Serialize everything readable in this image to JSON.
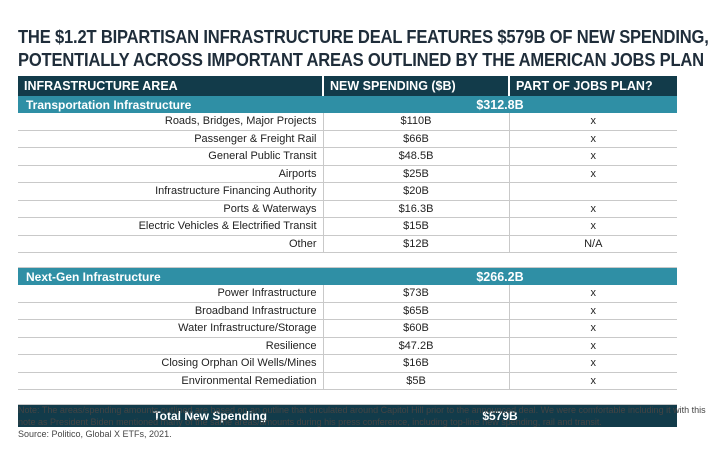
{
  "title": {
    "line1": "THE $1.2T BIPARTISAN INFRASTRUCTURE DEAL FEATURES $579B OF NEW SPENDING,",
    "line2": "POTENTIALLY ACROSS IMPORTANT AREAS OUTLINED BY THE AMERICAN JOBS PLAN"
  },
  "headers": {
    "area": "INFRASTRUCTURE AREA",
    "spending": "NEW SPENDING ($B)",
    "jobs": "PART OF JOBS PLAN?"
  },
  "transport": {
    "name": "Transportation Infrastructure",
    "subtotal": "$312.8B",
    "rows": [
      {
        "area": "Roads, Bridges, Major Projects",
        "amount": "$110B",
        "jobs": "x"
      },
      {
        "area": "Passenger & Freight Rail",
        "amount": "$66B",
        "jobs": "x"
      },
      {
        "area": "General Public Transit",
        "amount": "$48.5B",
        "jobs": "x"
      },
      {
        "area": "Airports",
        "amount": "$25B",
        "jobs": "x"
      },
      {
        "area": "Infrastructure Financing Authority",
        "amount": "$20B",
        "jobs": ""
      },
      {
        "area": "Ports & Waterways",
        "amount": "$16.3B",
        "jobs": "x"
      },
      {
        "area": "Electric Vehicles & Electrified Transit",
        "amount": "$15B",
        "jobs": "x"
      },
      {
        "area": "Other",
        "amount": "$12B",
        "jobs": "N/A"
      }
    ]
  },
  "nextgen": {
    "name": "Next-Gen Infrastructure",
    "subtotal": "$266.2B",
    "rows": [
      {
        "area": "Power Infrastructure",
        "amount": "$73B",
        "jobs": "x"
      },
      {
        "area": "Broadband Infrastructure",
        "amount": "$65B",
        "jobs": "x"
      },
      {
        "area": "Water Infrastructure/Storage",
        "amount": "$60B",
        "jobs": "x"
      },
      {
        "area": "Resilience",
        "amount": "$47.2B",
        "jobs": "x"
      },
      {
        "area": "Closing Orphan Oil Wells/Mines",
        "amount": "$16B",
        "jobs": "x"
      },
      {
        "area": "Environmental Remediation",
        "amount": "$5B",
        "jobs": "x"
      }
    ]
  },
  "total": {
    "label": "Total New Spending",
    "amount": "$579B"
  },
  "note": {
    "text": "Note: The areas/spending amounts outlined are based on an outline that circulated around Capitol Hill prior to the announced deal. We were comfortable including it with this note as President Biden mentioned many of the same areas/amounts during his press conference, including top-line new spending, rail and transit.",
    "source": "Source: Politico, Global X ETFs, 2021."
  }
}
